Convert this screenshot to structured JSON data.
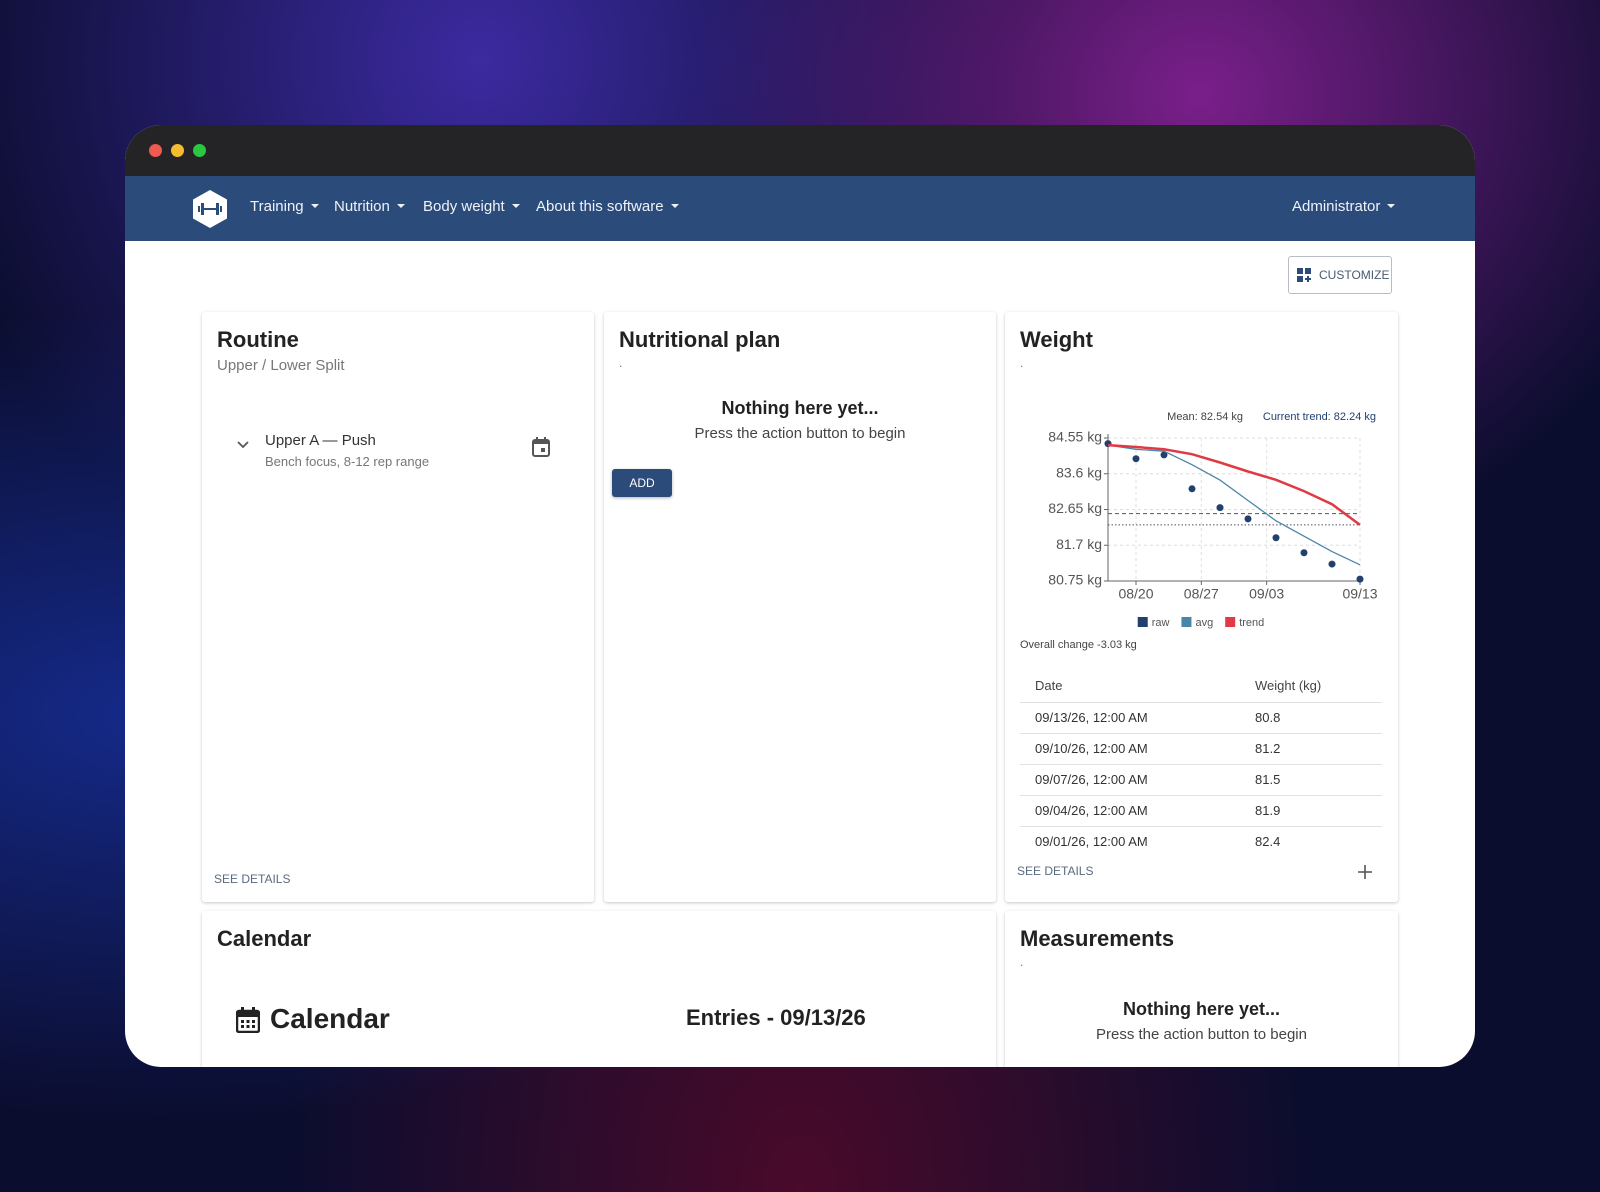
{
  "nav": {
    "items": [
      "Training",
      "Nutrition",
      "Body weight",
      "About this software"
    ],
    "user": "Administrator"
  },
  "customize": "CUSTOMIZE",
  "routine": {
    "title": "Routine",
    "subtitle": "Upper / Lower Split",
    "item": {
      "title": "Upper A — Push",
      "subtitle": "Bench focus, 8-12 rep range"
    },
    "link": "SEE DETAILS"
  },
  "nutrition": {
    "title": "Nutritional plan",
    "placeholder": ".",
    "empty_title": "Nothing here yet...",
    "empty_text": "Press the action button to begin",
    "button": "ADD"
  },
  "weight": {
    "title": "Weight",
    "placeholder": ".",
    "chart_data": {
      "type": "line",
      "x": [
        "08/17",
        "08/20",
        "08/23",
        "08/26",
        "08/29",
        "09/01",
        "09/04",
        "09/07",
        "09/10",
        "09/13"
      ],
      "series": [
        {
          "name": "raw",
          "color": "#22406e",
          "mode": "markers",
          "values": [
            84.4,
            84.0,
            84.1,
            83.2,
            82.7,
            82.4,
            81.9,
            81.5,
            81.2,
            80.8
          ]
        },
        {
          "name": "avg",
          "color": "#4a86a8",
          "mode": "lines",
          "values": [
            84.36,
            84.25,
            84.2,
            83.84,
            83.43,
            82.89,
            82.35,
            81.94,
            81.53,
            81.18
          ]
        },
        {
          "name": "trend",
          "color": "#e03a45",
          "mode": "lines",
          "values": [
            84.36,
            84.31,
            84.25,
            84.12,
            83.9,
            83.66,
            83.44,
            83.14,
            82.79,
            82.24
          ]
        }
      ],
      "annotations": [
        {
          "label": "Mean: 82.54 kg",
          "value": 82.54,
          "style": "dashed",
          "color": "#444444"
        },
        {
          "label": "Current trend: 82.24 kg",
          "value": 82.24,
          "style": "dotted",
          "color": "#22406e"
        }
      ],
      "xlim": [
        "08/17",
        "09/13"
      ],
      "xticks": [
        "08/20",
        "08/27",
        "09/03",
        "09/13"
      ],
      "ylim": [
        80.75,
        84.55
      ],
      "yticks": [
        {
          "value": 80.75,
          "label": "80.75 kg"
        },
        {
          "value": 81.7,
          "label": "81.7 kg"
        },
        {
          "value": 82.65,
          "label": "82.65 kg"
        },
        {
          "value": 83.6,
          "label": "83.6 kg"
        },
        {
          "value": 84.55,
          "label": "84.55 kg"
        }
      ],
      "grid": true,
      "legend": "bottom"
    },
    "overall_change": "Overall change -3.03 kg",
    "table": {
      "header": [
        "Date",
        "Weight (kg)"
      ],
      "rows": [
        [
          "09/13/26, 12:00 AM",
          80.8
        ],
        [
          "09/10/26, 12:00 AM",
          81.2
        ],
        [
          "09/07/26, 12:00 AM",
          81.5
        ],
        [
          "09/04/26, 12:00 AM",
          81.9
        ],
        [
          "09/01/26, 12:00 AM",
          82.4
        ]
      ]
    },
    "link": "SEE DETAILS"
  },
  "calendar": {
    "title": "Calendar",
    "heading": "Calendar",
    "entries": "Entries - 09/13/26"
  },
  "measurements": {
    "title": "Measurements",
    "placeholder": ".",
    "empty_title": "Nothing here yet...",
    "empty_text": "Press the action button to begin"
  }
}
